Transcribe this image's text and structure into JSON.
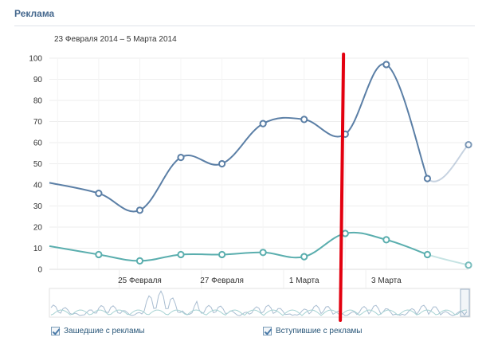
{
  "header": {
    "title": "Реклама"
  },
  "date_range": "23 Февраля 2014 – 5 Марта 2014",
  "legend": [
    {
      "label": "Зашедшие с рекламы",
      "checked": true
    },
    {
      "label": "Вступившие с рекламы",
      "checked": true
    }
  ],
  "colors": {
    "series_1": "#5b7fa6",
    "series_2": "#5aaeae",
    "marker": "#e3000f",
    "grid": "#eeeeee"
  },
  "chart_data": {
    "type": "line",
    "title": "",
    "xlabel": "",
    "ylabel": "",
    "ylim": [
      0,
      100
    ],
    "yticks": [
      "0",
      "10",
      "20",
      "30",
      "40",
      "50",
      "60",
      "70",
      "80",
      "90",
      "100"
    ],
    "x_tick_labels": [
      "25 Февраля",
      "27 Февраля",
      "1 Марта",
      "3 Марта"
    ],
    "x_ticks_at": [
      2,
      4,
      6,
      8
    ],
    "categories": [
      "23.02",
      "24.02",
      "25.02",
      "26.02",
      "27.02",
      "28.02",
      "1.03",
      "2.03",
      "3.03",
      "4.03",
      "5.03"
    ],
    "series": [
      {
        "values": [
          41,
          36,
          28,
          53,
          50,
          69,
          71,
          64,
          97,
          43,
          59
        ]
      },
      {
        "values": [
          11,
          7,
          4,
          7,
          7,
          8,
          6,
          17,
          14,
          7,
          2
        ]
      }
    ],
    "x_start_offset": 0.2,
    "projection_from_index": 9,
    "marker_at": 7,
    "grid": true,
    "legend_position": "bottom-left"
  }
}
